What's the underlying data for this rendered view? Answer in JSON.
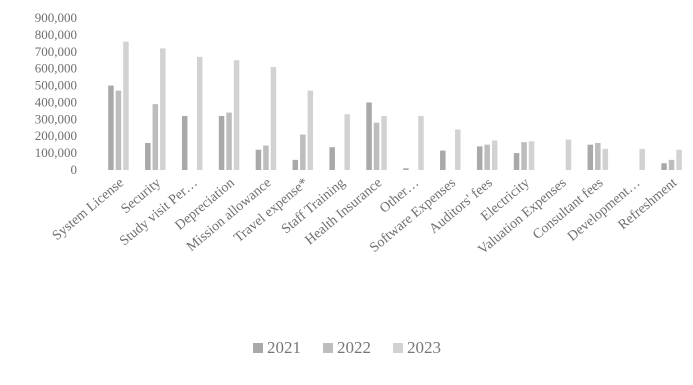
{
  "chart_data": {
    "type": "bar",
    "title": "",
    "xlabel": "",
    "ylabel": "",
    "ylim": [
      0,
      900000
    ],
    "yticks": [
      "900,000",
      "800,000",
      "700,000",
      "600,000",
      "500,000",
      "400,000",
      "300,000",
      "200,000",
      "100,000",
      "0"
    ],
    "grid": false,
    "legend_position": "bottom",
    "categories": [
      "System License",
      "Security",
      "Study visit Per…",
      "Depreciation",
      "Mission allowance",
      "Travel expense*",
      "Staff Training",
      "Health Insurance",
      "Other…",
      "Software Expenses",
      "Auditors' fees",
      "Electricity",
      "Valuation Expenses",
      "Consultant fees",
      "Development…",
      "Refreshment"
    ],
    "series": [
      {
        "name": "2021",
        "color": "#a9a9a9",
        "values": [
          500000,
          160000,
          320000,
          320000,
          120000,
          60000,
          135000,
          400000,
          10000,
          115000,
          140000,
          100000,
          0,
          150000,
          0,
          40000
        ]
      },
      {
        "name": "2022",
        "color": "#bdbdbd",
        "values": [
          470000,
          390000,
          0,
          340000,
          145000,
          210000,
          0,
          280000,
          0,
          0,
          150000,
          165000,
          0,
          160000,
          0,
          60000
        ]
      },
      {
        "name": "2023",
        "color": "#d2d2d2",
        "values": [
          760000,
          720000,
          670000,
          650000,
          610000,
          470000,
          330000,
          320000,
          320000,
          240000,
          175000,
          170000,
          180000,
          125000,
          125000,
          120000
        ]
      }
    ]
  }
}
